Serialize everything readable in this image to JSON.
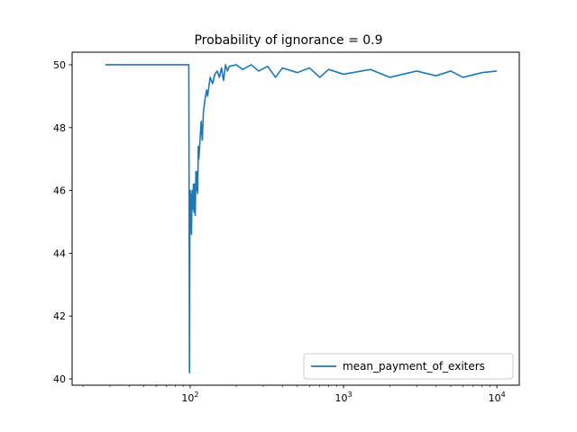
{
  "chart_data": {
    "type": "line",
    "title": "Probability of ignorance = 0.9",
    "xlabel": "",
    "ylabel": "",
    "xscale": "log",
    "xlim": [
      17,
      14000
    ],
    "ylim": [
      39.8,
      50.4
    ],
    "grid": false,
    "legend_position": "lower-right",
    "x_ticks": [
      {
        "value": 100,
        "base": "10",
        "exp": "2"
      },
      {
        "value": 1000,
        "base": "10",
        "exp": "3"
      },
      {
        "value": 10000,
        "base": "10",
        "exp": "4"
      }
    ],
    "y_ticks": [
      40,
      42,
      44,
      46,
      48,
      50
    ],
    "series": [
      {
        "name": "mean_payment_of_exiters",
        "color": "#1f77b4",
        "x": [
          28,
          98,
          99,
          99.5,
          100,
          101,
          102,
          103,
          104,
          105,
          106,
          107,
          108,
          109,
          110,
          111,
          112,
          113,
          114,
          116,
          118,
          120,
          122,
          125,
          128,
          130,
          135,
          140,
          145,
          150,
          155,
          160,
          165,
          170,
          175,
          180,
          200,
          220,
          250,
          280,
          320,
          360,
          400,
          500,
          600,
          700,
          800,
          1000,
          1500,
          2000,
          3000,
          4000,
          5000,
          6000,
          8000,
          10000
        ],
        "y": [
          50.0,
          50.0,
          40.2,
          44.6,
          46.0,
          45.8,
          44.6,
          46.0,
          45.4,
          46.2,
          45.3,
          46.2,
          45.2,
          46.6,
          46.0,
          46.6,
          45.9,
          47.4,
          47.0,
          47.6,
          48.2,
          47.6,
          48.5,
          48.9,
          49.2,
          49.0,
          49.6,
          49.4,
          49.7,
          49.8,
          49.6,
          49.9,
          49.5,
          50.0,
          49.8,
          49.95,
          50.0,
          49.85,
          50.0,
          49.8,
          49.95,
          49.6,
          49.9,
          49.75,
          49.9,
          49.6,
          49.85,
          49.7,
          49.85,
          49.6,
          49.8,
          49.65,
          49.8,
          49.6,
          49.75,
          49.8
        ]
      }
    ]
  }
}
